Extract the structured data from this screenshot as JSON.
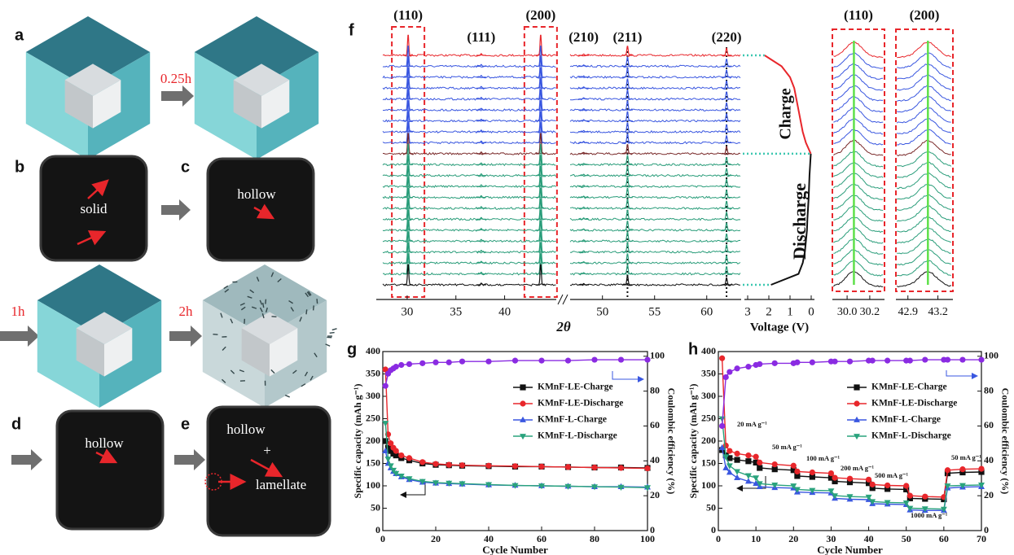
{
  "illustrations": {
    "panel_labels": [
      "a",
      "b",
      "c",
      "d",
      "e"
    ],
    "times": [
      "0.25h",
      "1h",
      "2h"
    ],
    "b": "solid",
    "c": "hollow",
    "d": "hollow",
    "e": [
      "hollow",
      "+",
      "lamellate"
    ]
  },
  "chart_data": [
    {
      "type": "xrd",
      "label": "f",
      "xlabel": "2θ",
      "xlim": [
        27.5,
        63.3
      ],
      "axis_break": [
        45.3,
        46.9
      ],
      "xticks": [
        30,
        35,
        40,
        50,
        55,
        60
      ],
      "peaks": [
        {
          "label": "(110)",
          "x": 30.1,
          "intensity": 1.0
        },
        {
          "label": "(111)",
          "x": 37.6,
          "intensity": 0.08
        },
        {
          "label": "(200)",
          "x": 43.7,
          "intensity": 1.0
        },
        {
          "label": "(210)",
          "x": 48.2,
          "intensity": 0.06
        },
        {
          "label": "(211)",
          "x": 52.4,
          "intensity": 0.45,
          "dotted": true
        },
        {
          "label": "(220)",
          "x": 61.9,
          "intensity": 0.35,
          "dotted": true
        }
      ],
      "traces": [
        "#e8262b",
        "#3a57e0",
        "#3a57e0",
        "#3a57e0",
        "#3a57e0",
        "#3a57e0",
        "#3a57e0",
        "#3a57e0",
        "#3a57e0",
        "#7a2a2a",
        "#2a9d7a",
        "#2a9d7a",
        "#2a9d7a",
        "#2a9d7a",
        "#2a9d7a",
        "#2a9d7a",
        "#2a9d7a",
        "#2a9d7a",
        "#2a9d7a",
        "#2a9d7a",
        "#2a9d7a",
        "#111111"
      ],
      "voltage": {
        "xlabel": "Voltage (V)",
        "xlim": [
          3,
          0
        ],
        "xticks": [
          3,
          2,
          1,
          0
        ],
        "labels": [
          "Charge",
          "Discharge"
        ],
        "colors": [
          "#e8262b",
          "#111111"
        ],
        "values": [
          2.2,
          1.4,
          1.0,
          0.8,
          0.7,
          0.6,
          0.5,
          0.4,
          0.25,
          0.02,
          0.05,
          0.08,
          0.1,
          0.12,
          0.15,
          0.18,
          0.2,
          0.25,
          0.3,
          0.4,
          0.6,
          1.9
        ]
      },
      "zooms": [
        {
          "label": "(110)",
          "xlim": [
            29.87,
            30.33
          ],
          "xticks": [
            {
              "value": 30,
              "label": "30.0"
            },
            30.2
          ],
          "center": 30.06
        },
        {
          "label": "(200)",
          "xlim": [
            42.78,
            43.35
          ],
          "xticks": [
            42.9,
            43.2
          ],
          "center": 43.1
        }
      ]
    },
    {
      "type": "line",
      "label": "g",
      "xlabel": "Cycle Number",
      "ylabel": "Specific capacity (mAh g⁻¹)",
      "y2label": "Coulombic efficiency (%)",
      "xlim": [
        0,
        100
      ],
      "xticks": [
        0,
        20,
        40,
        60,
        80,
        100
      ],
      "ylim": [
        0,
        400
      ],
      "yticks": [
        0,
        50,
        100,
        150,
        200,
        250,
        300,
        350,
        400
      ],
      "y2lim": [
        0,
        102.7
      ],
      "y2ticks": [
        0,
        20,
        40,
        60,
        80,
        100
      ],
      "legend": "upper right",
      "x": [
        1,
        2,
        3,
        4,
        5,
        7,
        10,
        15,
        20,
        25,
        30,
        40,
        50,
        60,
        70,
        80,
        90,
        100
      ],
      "series": [
        {
          "name": "KMnF-LE-Charge",
          "color": "#111111",
          "marker": "square",
          "values": [
            200,
            185,
            178,
            172,
            168,
            162,
            157,
            150,
            147,
            146,
            145,
            144,
            143,
            143,
            142,
            141,
            141,
            140
          ]
        },
        {
          "name": "KMnF-LE-Discharge",
          "color": "#e8262b",
          "marker": "circle",
          "values": [
            360,
            215,
            195,
            185,
            178,
            168,
            162,
            153,
            149,
            147,
            146,
            145,
            144,
            143,
            142,
            141,
            140,
            139
          ]
        },
        {
          "name": "KMnF-L-Charge",
          "color": "#3a57e0",
          "marker": "triangle-up",
          "values": [
            178,
            150,
            140,
            132,
            127,
            120,
            114,
            108,
            106,
            105,
            104,
            102,
            101,
            100,
            99,
            98,
            98,
            97
          ]
        },
        {
          "name": "KMnF-L-Discharge",
          "color": "#2aa37d",
          "marker": "triangle-down",
          "values": [
            240,
            160,
            145,
            135,
            128,
            122,
            116,
            110,
            107,
            106,
            105,
            103,
            101,
            100,
            99,
            98,
            97,
            96
          ]
        },
        {
          "color": "#8a2be2",
          "marker": "circle",
          "axis": "y2",
          "values": [
            83,
            90,
            92,
            93,
            94,
            95,
            95.5,
            96,
            96.5,
            96.5,
            97,
            97,
            97.5,
            97.5,
            97.5,
            98,
            98,
            98
          ]
        }
      ]
    },
    {
      "type": "line",
      "label": "h",
      "xlabel": "Cycle Number",
      "ylabel": "Specific capacity (mAh g⁻¹)",
      "y2label": "Coulombic efficiency (%)",
      "xlim": [
        0,
        70
      ],
      "xticks": [
        0,
        10,
        20,
        30,
        40,
        50,
        60,
        70
      ],
      "ylim": [
        0,
        400
      ],
      "yticks": [
        0,
        50,
        100,
        150,
        200,
        250,
        300,
        350,
        400
      ],
      "y2lim": [
        0,
        102.7
      ],
      "y2ticks": [
        0,
        20,
        40,
        60,
        80,
        100
      ],
      "legend": "upper right",
      "annotations": [
        "20 mA g⁻¹",
        "50 mA g⁻¹",
        "100 mA g⁻¹",
        "200 mA g⁻¹",
        "500 mA g⁻¹",
        "1000 mA g⁻¹",
        "50 mA g⁻¹"
      ],
      "x": [
        1,
        2,
        3,
        5,
        8,
        10,
        11,
        15,
        20,
        21,
        25,
        30,
        31,
        35,
        40,
        41,
        45,
        50,
        51,
        55,
        60,
        61,
        65,
        70
      ],
      "series": [
        {
          "name": "KMnF-LE-Charge",
          "color": "#111111",
          "marker": "square",
          "values": [
            180,
            168,
            162,
            158,
            155,
            152,
            140,
            137,
            135,
            122,
            120,
            118,
            110,
            108,
            106,
            95,
            93,
            92,
            72,
            71,
            70,
            128,
            130,
            131
          ]
        },
        {
          "name": "KMnF-LE-Discharge",
          "color": "#e8262b",
          "marker": "circle",
          "values": [
            385,
            190,
            178,
            172,
            168,
            165,
            152,
            148,
            145,
            132,
            130,
            128,
            118,
            116,
            114,
            103,
            101,
            100,
            78,
            76,
            75,
            135,
            137,
            138
          ]
        },
        {
          "name": "KMnF-L-Charge",
          "color": "#3a57e0",
          "marker": "triangle-up",
          "values": [
            185,
            140,
            130,
            118,
            110,
            105,
            98,
            96,
            95,
            86,
            85,
            84,
            72,
            70,
            69,
            60,
            59,
            58,
            46,
            45,
            45,
            95,
            97,
            98
          ]
        },
        {
          "name": "KMnF-L-Discharge",
          "color": "#2aa37d",
          "marker": "triangle-down",
          "values": [
            250,
            165,
            145,
            132,
            123,
            118,
            105,
            102,
            100,
            92,
            90,
            89,
            78,
            76,
            75,
            65,
            63,
            62,
            50,
            49,
            48,
            100,
            101,
            102
          ]
        },
        {
          "color": "#8a2be2",
          "marker": "circle",
          "axis": "y2",
          "values": [
            60,
            88,
            91,
            93,
            94,
            95,
            95.5,
            96,
            96,
            96.5,
            96.5,
            97,
            97,
            97,
            97.5,
            97.5,
            97.5,
            97.5,
            97.5,
            98,
            98,
            98,
            98,
            98
          ]
        }
      ]
    }
  ]
}
